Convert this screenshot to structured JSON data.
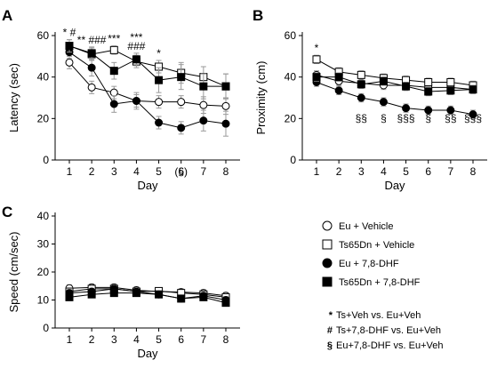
{
  "chart_data": [
    {
      "type": "line",
      "panel_label": "A",
      "xlabel": "Day",
      "ylabel": "Latency (sec)",
      "x": [
        1,
        2,
        3,
        4,
        5,
        6,
        7,
        8
      ],
      "xticks": [
        "1",
        "2",
        "3",
        "4",
        "5",
        "6",
        "7",
        "8"
      ],
      "ylim": [
        0,
        60
      ],
      "yticks": [
        "0",
        "20",
        "40",
        "60"
      ],
      "series": [
        {
          "name": "Eu + Vehicle",
          "values": [
            47,
            35,
            32.5,
            28.5,
            28,
            28,
            26.5,
            26
          ],
          "errors": [
            3,
            3,
            3,
            3,
            3,
            3,
            4,
            4
          ]
        },
        {
          "name": "Ts65Dn + Vehicle",
          "values": [
            55,
            51,
            53,
            47.5,
            45,
            42,
            40,
            35.5
          ],
          "errors": [
            3,
            3,
            2,
            3,
            3,
            5,
            5,
            6
          ]
        },
        {
          "name": "Eu + 7,8-DHF",
          "values": [
            52,
            44.5,
            27,
            28.5,
            18,
            15.5,
            19,
            17.5
          ],
          "errors": [
            3,
            4,
            4,
            4,
            3,
            3,
            5,
            6
          ]
        },
        {
          "name": "Ts65Dn + 7,8-DHF",
          "values": [
            55,
            51.5,
            43,
            48.5,
            38.5,
            40,
            35.5,
            35.5
          ],
          "errors": [
            3,
            3,
            4,
            3,
            6,
            6,
            6,
            6
          ]
        }
      ],
      "annotations": [
        {
          "x": 1,
          "lines": [
            "* #"
          ]
        },
        {
          "x": 2,
          "lines": [
            "** ###"
          ]
        },
        {
          "x": 3,
          "lines": [
            "***"
          ]
        },
        {
          "x": 4,
          "lines": [
            "***",
            "###"
          ]
        },
        {
          "x": 5,
          "lines": [
            "*"
          ]
        },
        {
          "x": 6,
          "lines": [
            "(§)"
          ]
        }
      ]
    },
    {
      "type": "line",
      "panel_label": "B",
      "xlabel": "Day",
      "ylabel": "Proximity (cm)",
      "x": [
        1,
        2,
        3,
        4,
        5,
        6,
        7,
        8
      ],
      "xticks": [
        "1",
        "2",
        "3",
        "4",
        "5",
        "6",
        "7",
        "8"
      ],
      "ylim": [
        0,
        60
      ],
      "yticks": [
        "0",
        "20",
        "40",
        "60"
      ],
      "series": [
        {
          "name": "Eu + Vehicle",
          "values": [
            41,
            38,
            37,
            36,
            36,
            35,
            35,
            34
          ],
          "errors": [
            2,
            2,
            2,
            2,
            2,
            2,
            2,
            2
          ]
        },
        {
          "name": "Ts65Dn + Vehicle",
          "values": [
            48.5,
            42.5,
            41,
            39.5,
            38.5,
            37.5,
            37.5,
            36
          ],
          "errors": [
            2,
            2,
            2,
            2,
            2,
            2,
            2,
            2
          ]
        },
        {
          "name": "Eu + 7,8-DHF",
          "values": [
            37.5,
            33.5,
            30,
            28,
            25,
            24,
            24,
            22
          ],
          "errors": [
            2,
            2,
            2,
            2,
            2,
            2,
            2,
            2
          ]
        },
        {
          "name": "Ts65Dn + 7,8-DHF",
          "values": [
            40,
            40,
            36.5,
            38,
            35.5,
            33,
            33.5,
            34
          ],
          "errors": [
            2,
            2,
            2,
            2,
            2,
            2,
            2,
            2
          ]
        }
      ],
      "annotations": [
        {
          "x": 1,
          "lines": [
            "*"
          ]
        },
        {
          "x": 3,
          "lines": [
            "§§"
          ]
        },
        {
          "x": 4,
          "lines": [
            "§"
          ]
        },
        {
          "x": 5,
          "lines": [
            "§§§"
          ]
        },
        {
          "x": 6,
          "lines": [
            "§"
          ]
        },
        {
          "x": 7,
          "lines": [
            "§§"
          ]
        },
        {
          "x": 8,
          "lines": [
            "§§§"
          ]
        }
      ]
    },
    {
      "type": "line",
      "panel_label": "C",
      "xlabel": "Day",
      "ylabel": "Speed (cm/sec)",
      "x": [
        1,
        2,
        3,
        4,
        5,
        6,
        7,
        8
      ],
      "xticks": [
        "1",
        "2",
        "3",
        "4",
        "5",
        "6",
        "7",
        "8"
      ],
      "ylim": [
        0,
        40
      ],
      "yticks": [
        "0",
        "10",
        "20",
        "30",
        "40"
      ],
      "series": [
        {
          "name": "Eu + Vehicle",
          "values": [
            14.2,
            14.5,
            14.5,
            13.5,
            13,
            12.8,
            12.5,
            11.5
          ],
          "errors": [
            1.2,
            1.2,
            1.2,
            1.2,
            1.2,
            1.2,
            1.2,
            1.2
          ]
        },
        {
          "name": "Ts65Dn + Vehicle",
          "values": [
            13,
            14,
            14,
            13,
            13.2,
            12.5,
            12,
            11
          ],
          "errors": [
            1.2,
            1.2,
            1.2,
            1.2,
            1.2,
            1.2,
            1.2,
            1.2
          ]
        },
        {
          "name": "Eu + 7,8-DHF",
          "values": [
            12.5,
            13,
            14,
            13,
            12,
            10.5,
            11.5,
            10
          ],
          "errors": [
            1.2,
            1.2,
            1.2,
            1.2,
            1.2,
            1.2,
            1.2,
            1.2
          ]
        },
        {
          "name": "Ts65Dn + 7,8-DHF",
          "values": [
            11,
            12,
            12.5,
            12.5,
            12,
            10.5,
            11,
            9
          ],
          "errors": [
            1.2,
            1.2,
            1.2,
            1.2,
            1.2,
            1.2,
            1.2,
            1.2
          ]
        }
      ],
      "annotations": []
    }
  ],
  "legend": {
    "entries": [
      {
        "label": "Eu + Vehicle",
        "marker": "circle",
        "fill": "#ffffff"
      },
      {
        "label": "Ts65Dn + Vehicle",
        "marker": "square",
        "fill": "#ffffff"
      },
      {
        "label": "Eu + 7,8-DHF",
        "marker": "circle",
        "fill": "#000000"
      },
      {
        "label": "Ts65Dn + 7,8-DHF",
        "marker": "square",
        "fill": "#000000"
      }
    ],
    "key": [
      {
        "symbol": "*",
        "text": "Ts+Veh vs. Eu+Veh"
      },
      {
        "symbol": "#",
        "text": "Ts+7,8-DHF vs. Eu+Veh"
      },
      {
        "symbol": "§",
        "text": "Eu+7,8-DHF vs. Eu+Veh"
      }
    ]
  },
  "colors": {
    "line": "#000000",
    "error_bar": "#9a9a9a",
    "open_fill": "#ffffff",
    "filled": "#000000"
  }
}
